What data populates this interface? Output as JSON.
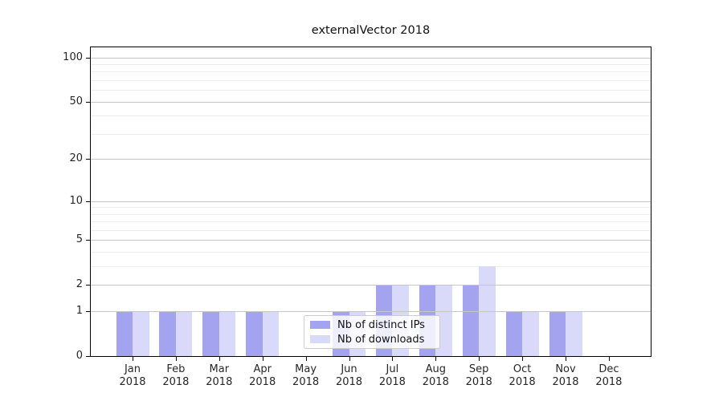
{
  "figure": {
    "background": "#ffffff",
    "spine_color": "#000000",
    "text_color": "#262626"
  },
  "chart_data": {
    "type": "bar",
    "title": "externalVector 2018",
    "categories": [
      {
        "month": "Jan",
        "year": "2018"
      },
      {
        "month": "Feb",
        "year": "2018"
      },
      {
        "month": "Mar",
        "year": "2018"
      },
      {
        "month": "Apr",
        "year": "2018"
      },
      {
        "month": "May",
        "year": "2018"
      },
      {
        "month": "Jun",
        "year": "2018"
      },
      {
        "month": "Jul",
        "year": "2018"
      },
      {
        "month": "Aug",
        "year": "2018"
      },
      {
        "month": "Sep",
        "year": "2018"
      },
      {
        "month": "Oct",
        "year": "2018"
      },
      {
        "month": "Nov",
        "year": "2018"
      },
      {
        "month": "Dec",
        "year": "2018"
      }
    ],
    "series": [
      {
        "name": "Nb of distinct IPs",
        "color": "#a3a3f0",
        "values": [
          1,
          1,
          1,
          1,
          0,
          1,
          2,
          2,
          2,
          1,
          1,
          0
        ]
      },
      {
        "name": "Nb of downloads",
        "color": "#d9d9f9",
        "values": [
          1,
          1,
          1,
          1,
          0,
          1,
          2,
          2,
          3,
          1,
          1,
          0
        ]
      }
    ],
    "y_axis": {
      "scale": "log1p",
      "major_ticks": [
        0,
        1,
        2,
        5,
        10,
        20,
        50,
        100
      ],
      "minor_gridlines": [
        3,
        4,
        6,
        7,
        8,
        9,
        30,
        40,
        60,
        70,
        80,
        90
      ],
      "ylim": [
        0,
        117
      ]
    },
    "grid": {
      "major_color": "#c6c6c6",
      "minor_color": "#ededed"
    },
    "legend": {
      "position": "lower center"
    }
  }
}
